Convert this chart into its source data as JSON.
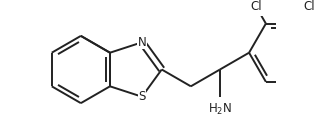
{
  "background_color": "#ffffff",
  "line_color": "#222222",
  "line_width": 1.4,
  "font_size_label": 8.5,
  "figure_size": [
    3.25,
    1.24
  ],
  "dpi": 100,
  "xlim": [
    -0.5,
    6.8
  ],
  "ylim": [
    -1.0,
    2.2
  ]
}
